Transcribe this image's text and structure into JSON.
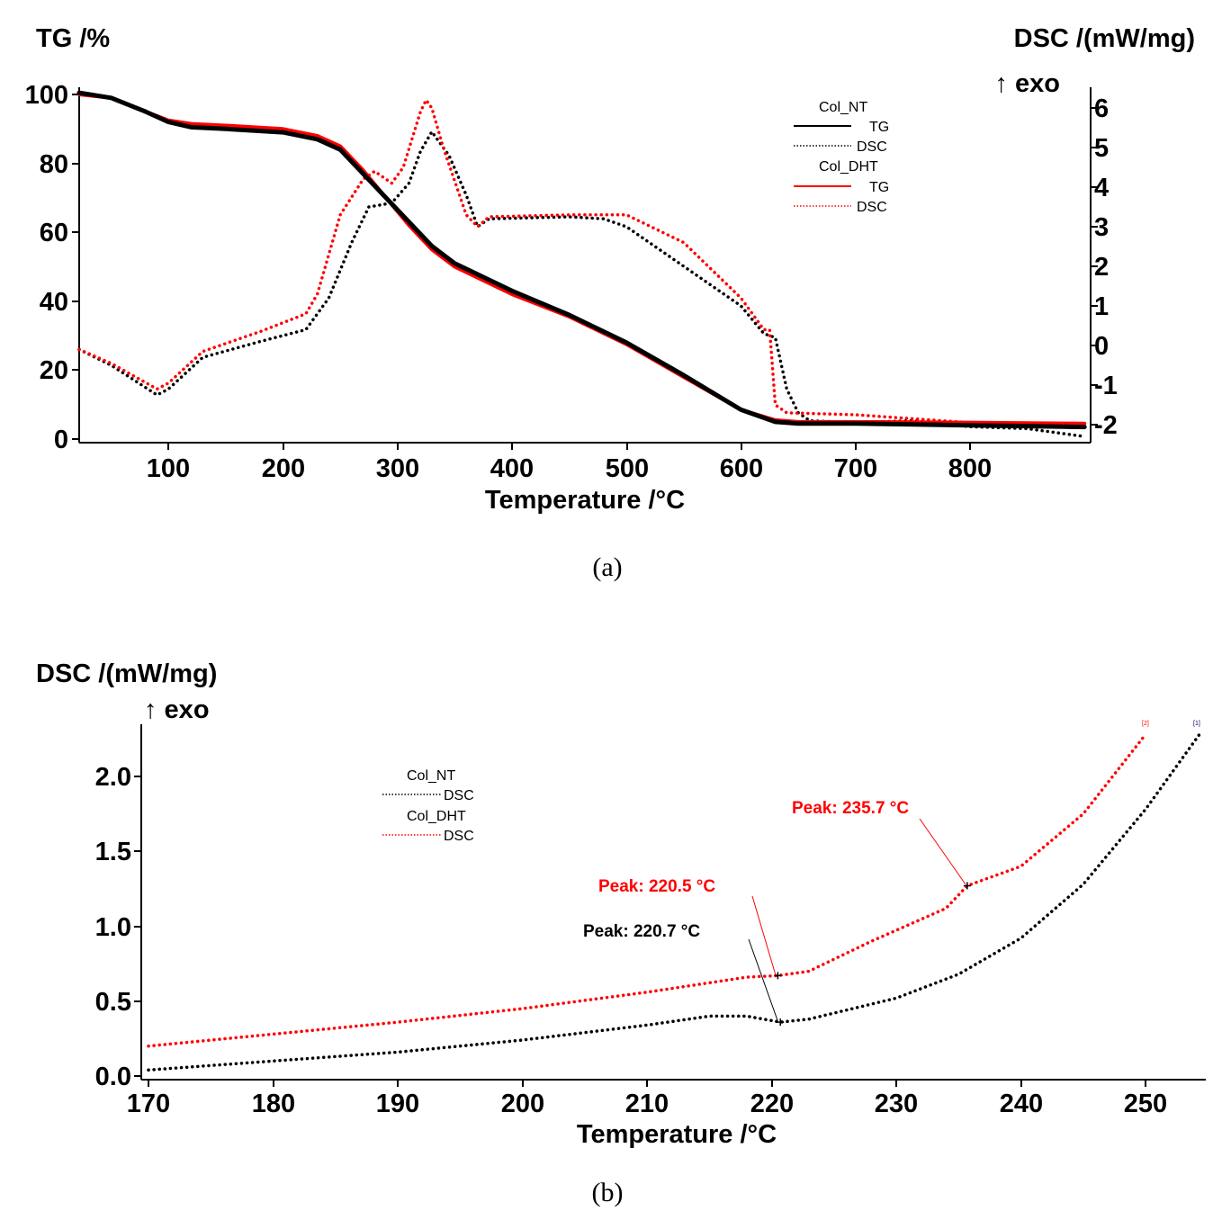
{
  "colors": {
    "nt": "#000000",
    "dht": "#ff0000"
  },
  "chart_data": [
    {
      "id": "a",
      "type": "line",
      "caption": "(a)",
      "xlabel": "Temperature /°C",
      "ylabel_left": "TG /%",
      "ylabel_right_line1": "DSC /(mW/mg)",
      "ylabel_right_line2": "↑ exo",
      "xlim": [
        22,
        905
      ],
      "ylim_left": [
        0,
        100
      ],
      "ylim_right": [
        -2.2,
        6.5
      ],
      "x_ticks": [
        "100",
        "200",
        "300",
        "400",
        "500",
        "600",
        "700",
        "800"
      ],
      "y_left_ticks": [
        "100",
        "80",
        "60",
        "40",
        "20",
        "0"
      ],
      "y_right_ticks": [
        "6",
        "5",
        "4",
        "3",
        "2",
        "1",
        "0",
        "-1",
        "-2"
      ],
      "legend": {
        "group1": "Col_NT",
        "group2": "Col_DHT",
        "tg": "TG",
        "dsc": "DSC"
      },
      "series": [
        {
          "name": "Col_NT TG",
          "axis": "left",
          "style": "solid",
          "color": "nt",
          "x": [
            22,
            50,
            80,
            100,
            120,
            150,
            200,
            230,
            250,
            270,
            290,
            310,
            330,
            350,
            400,
            450,
            500,
            550,
            600,
            630,
            650,
            700,
            800,
            900
          ],
          "y": [
            100.5,
            99,
            95,
            92,
            90.5,
            90,
            89,
            87,
            84,
            77,
            70,
            63,
            56,
            51,
            43,
            36,
            28,
            18.5,
            8.5,
            5,
            4.5,
            4.5,
            4,
            3.5
          ]
        },
        {
          "name": "Col_NT DSC",
          "axis": "right",
          "style": "dotted",
          "color": "nt",
          "x": [
            22,
            50,
            90,
            100,
            130,
            180,
            220,
            240,
            260,
            275,
            295,
            310,
            320,
            330,
            345,
            360,
            370,
            380,
            450,
            480,
            500,
            550,
            600,
            620,
            630,
            640,
            650,
            660,
            700,
            750,
            800,
            850,
            900
          ],
          "y": [
            -0.1,
            -0.5,
            -1.25,
            -1.1,
            -0.3,
            0.1,
            0.4,
            1.2,
            2.6,
            3.5,
            3.6,
            4.1,
            4.9,
            5.4,
            4.8,
            3.8,
            3.0,
            3.2,
            3.25,
            3.2,
            3.0,
            2.0,
            1.0,
            0.3,
            0.2,
            -1.1,
            -1.7,
            -1.9,
            -1.95,
            -1.9,
            -2.05,
            -2.1,
            -2.3
          ]
        },
        {
          "name": "Col_DHT TG",
          "axis": "left",
          "style": "solid",
          "color": "dht",
          "x": [
            22,
            50,
            80,
            100,
            120,
            150,
            200,
            230,
            250,
            270,
            290,
            310,
            330,
            350,
            400,
            450,
            500,
            550,
            600,
            630,
            650,
            700,
            800,
            900
          ],
          "y": [
            100,
            99,
            95,
            92.5,
            91.5,
            91,
            90,
            88,
            85,
            78,
            70,
            62,
            55,
            50,
            42,
            35.5,
            27.5,
            18,
            8.5,
            5.5,
            5,
            5,
            4.8,
            4.5
          ]
        },
        {
          "name": "Col_DHT DSC",
          "axis": "right",
          "style": "dotted",
          "color": "dht",
          "x": [
            22,
            50,
            90,
            100,
            130,
            180,
            220,
            230,
            250,
            270,
            280,
            295,
            305,
            320,
            325,
            330,
            340,
            360,
            370,
            380,
            450,
            500,
            550,
            600,
            620,
            625,
            630,
            640,
            700,
            800,
            900
          ],
          "y": [
            -0.1,
            -0.45,
            -1.1,
            -0.95,
            -0.15,
            0.35,
            0.8,
            1.3,
            3.3,
            4.2,
            4.4,
            4.1,
            4.5,
            5.9,
            6.2,
            6.0,
            5.0,
            3.3,
            3.0,
            3.25,
            3.3,
            3.3,
            2.6,
            1.2,
            0.4,
            0.4,
            -1.5,
            -1.7,
            -1.75,
            -1.95,
            -2.0
          ]
        }
      ]
    },
    {
      "id": "b",
      "type": "line",
      "caption": "(b)",
      "xlabel": "Temperature /°C",
      "ylabel_line1": "DSC /(mW/mg)",
      "ylabel_line2": "↑ exo",
      "xlim": [
        170,
        254.5
      ],
      "ylim": [
        0,
        2.35
      ],
      "x_ticks": [
        "170",
        "180",
        "190",
        "200",
        "210",
        "220",
        "230",
        "240",
        "250"
      ],
      "y_ticks": [
        "2.0",
        "1.5",
        "1.0",
        "0.5",
        "0.0"
      ],
      "legend": {
        "group1": "Col_NT",
        "group2": "Col_DHT",
        "dsc": "DSC"
      },
      "end_markers": [
        "[2]",
        "[1]"
      ],
      "series": [
        {
          "name": "Col_NT DSC",
          "style": "dotted",
          "color": "nt",
          "x": [
            170,
            180,
            190,
            200,
            210,
            215,
            218,
            220.7,
            223,
            230,
            235,
            240,
            245,
            250,
            254.5
          ],
          "y": [
            0.04,
            0.1,
            0.16,
            0.24,
            0.34,
            0.4,
            0.4,
            0.36,
            0.38,
            0.52,
            0.68,
            0.92,
            1.28,
            1.78,
            2.3
          ]
        },
        {
          "name": "Col_DHT DSC",
          "style": "dotted",
          "color": "dht",
          "x": [
            170,
            180,
            190,
            200,
            210,
            218,
            220.5,
            223,
            228,
            234,
            235.7,
            237,
            240,
            245,
            250
          ],
          "y": [
            0.2,
            0.28,
            0.36,
            0.45,
            0.56,
            0.66,
            0.67,
            0.7,
            0.9,
            1.12,
            1.27,
            1.31,
            1.4,
            1.75,
            2.28
          ]
        }
      ],
      "annotations": [
        {
          "label": "Peak: 220.5 °C",
          "color": "dht",
          "x": 220.5,
          "y": 0.67
        },
        {
          "label": "Peak: 220.7 °C",
          "color": "nt",
          "x": 220.7,
          "y": 0.36
        },
        {
          "label": "Peak: 235.7 °C",
          "color": "dht",
          "x": 235.7,
          "y": 1.27
        }
      ]
    }
  ]
}
